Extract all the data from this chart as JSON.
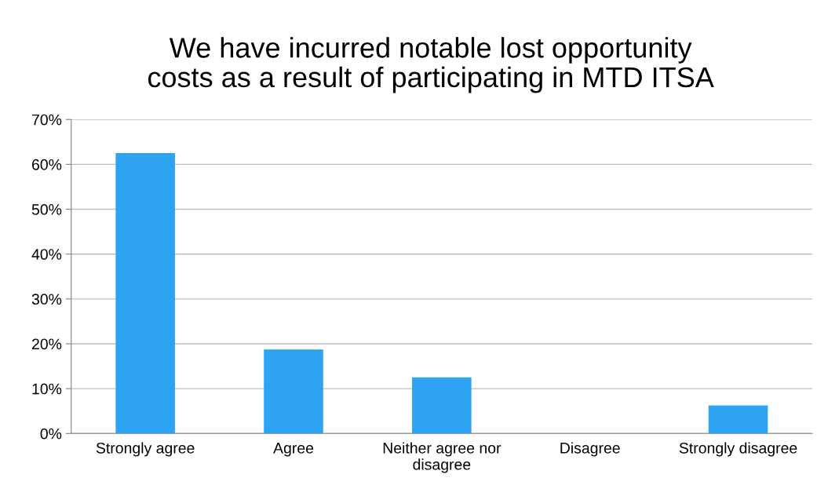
{
  "chart_data": {
    "type": "bar",
    "title": "We have incurred notable lost opportunity\ncosts as a result of participating in MTD ITSA",
    "categories": [
      "Strongly agree",
      "Agree",
      "Neither agree nor\ndisagree",
      "Disagree",
      "Strongly disagree"
    ],
    "values": [
      62.5,
      18.75,
      12.5,
      0,
      6.25
    ],
    "color": "#2ea3f2",
    "ylim": [
      0,
      70
    ],
    "yticks": [
      {
        "value": 0,
        "label": "0%"
      },
      {
        "value": 10,
        "label": "10%"
      },
      {
        "value": 20,
        "label": "20%"
      },
      {
        "value": 30,
        "label": "30%"
      },
      {
        "value": 40,
        "label": "40%"
      },
      {
        "value": 50,
        "label": "50%"
      },
      {
        "value": 60,
        "label": "60%"
      },
      {
        "value": 70,
        "label": "70%"
      }
    ],
    "grid": "y"
  }
}
